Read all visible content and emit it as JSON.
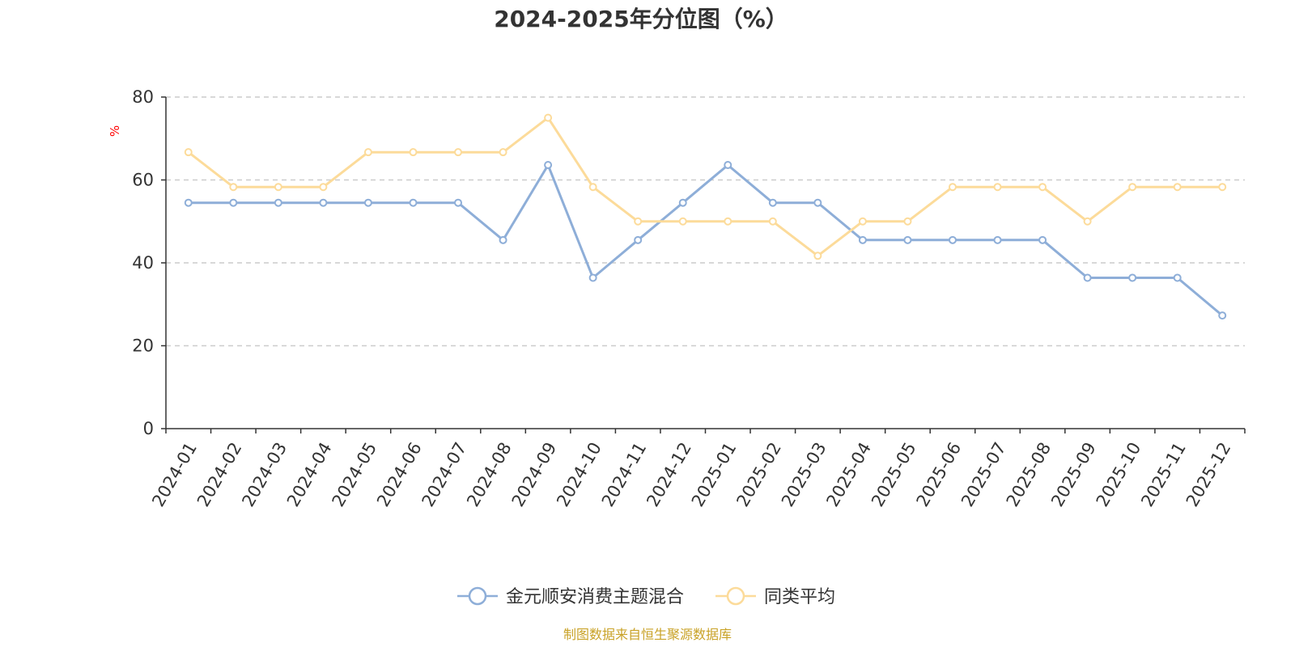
{
  "chart_data": {
    "type": "line",
    "title": "2024-2025年分位图（%）",
    "ylabel": "%",
    "xlabel": "",
    "ylim": [
      0,
      80
    ],
    "yticks": [
      0,
      20,
      40,
      60,
      80
    ],
    "grid": true,
    "legend_position": "bottom",
    "categories": [
      "2024-01",
      "2024-02",
      "2024-03",
      "2024-04",
      "2024-05",
      "2024-06",
      "2024-07",
      "2024-08",
      "2024-09",
      "2024-10",
      "2024-11",
      "2024-12",
      "2025-01",
      "2025-02",
      "2025-03",
      "2025-04",
      "2025-05",
      "2025-06",
      "2025-07",
      "2025-08",
      "2025-09",
      "2025-10",
      "2025-11",
      "2025-12"
    ],
    "series": [
      {
        "name": "金元顺安消费主题混合",
        "color": "#8eaed8",
        "values": [
          54.5,
          54.5,
          54.5,
          54.5,
          54.5,
          54.5,
          54.5,
          45.5,
          63.6,
          36.4,
          45.5,
          54.5,
          63.6,
          54.5,
          54.5,
          45.5,
          45.5,
          45.5,
          45.5,
          45.5,
          36.4,
          36.4,
          36.4,
          27.3
        ]
      },
      {
        "name": "同类平均",
        "color": "#fcdb9a",
        "values": [
          66.7,
          58.3,
          58.3,
          58.3,
          66.7,
          66.7,
          66.7,
          66.7,
          75.0,
          58.3,
          50.0,
          50.0,
          50.0,
          50.0,
          41.7,
          50.0,
          50.0,
          58.3,
          58.3,
          58.3,
          50.0,
          58.3,
          58.3,
          58.3
        ]
      }
    ],
    "source": "制图数据来自恒生聚源数据库"
  }
}
